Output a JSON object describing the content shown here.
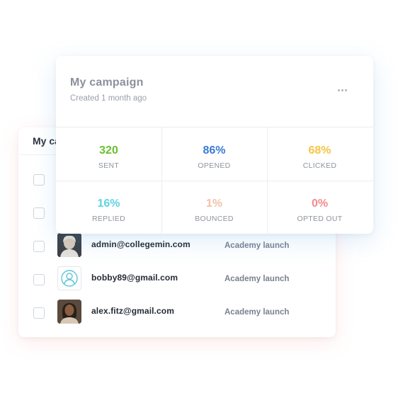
{
  "contacts_card": {
    "title": "My campaign",
    "rows": [
      {
        "email": "",
        "campaign": ""
      },
      {
        "email": "",
        "campaign": ""
      },
      {
        "email": "admin@collegemin.com",
        "campaign": "Academy launch"
      },
      {
        "email": "bobby89@gmail.com",
        "campaign": "Academy launch"
      },
      {
        "email": "alex.fitz@gmail.com",
        "campaign": "Academy launch"
      }
    ]
  },
  "campaign_card": {
    "title": "My campaign",
    "subtitle": "Created 1 month ago",
    "more_icon": "more-horizontal-icon",
    "stats": [
      {
        "value": "320",
        "label": "SENT",
        "color": "#6abf2e"
      },
      {
        "value": "86%",
        "label": "OPENED",
        "color": "#3a7bd5"
      },
      {
        "value": "68%",
        "label": "CLICKED",
        "color": "#f5c542"
      },
      {
        "value": "16%",
        "label": "REPLIED",
        "color": "#5fd3e6"
      },
      {
        "value": "1%",
        "label": "BOUNCED",
        "color": "#f3c1a8"
      },
      {
        "value": "0%",
        "label": "OPTED OUT",
        "color": "#f28b8b"
      }
    ]
  }
}
